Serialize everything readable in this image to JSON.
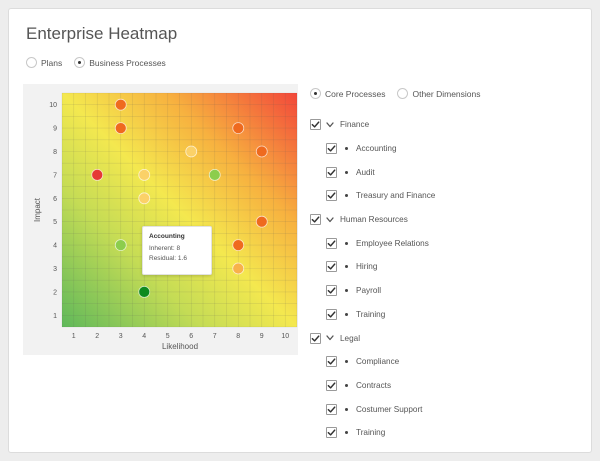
{
  "title": "Enterprise Heatmap",
  "view_mode": {
    "options": [
      {
        "label": "Plans",
        "selected": false
      },
      {
        "label": "Business Processes",
        "selected": true
      }
    ]
  },
  "filter_mode": {
    "options": [
      {
        "label": "Core Processes",
        "selected": true
      },
      {
        "label": "Other Dimensions",
        "selected": false
      }
    ]
  },
  "tooltip": {
    "title": "Accounting",
    "inherent": "Inherent: 8",
    "residual": "Residual: 1.6"
  },
  "colors": {
    "red": "#e53935",
    "dark_orange": "#ef6a1e",
    "orange": "#f5912c",
    "light_orange": "#f8b24a",
    "pale_yellow": "#fbd168",
    "light_green": "#8ccd4d",
    "dark_green": "#0e8a1f",
    "checkbox_border": "#9a9a9a",
    "check_mark": "#333333"
  },
  "chart_data": {
    "type": "scatter",
    "xlabel": "Likelihood",
    "ylabel": "Impact",
    "xlim": [
      0.5,
      10.5
    ],
    "ylim": [
      0.5,
      10.5
    ],
    "x_ticks": [
      "1",
      "2",
      "3",
      "4",
      "5",
      "6",
      "7",
      "8",
      "9",
      "10"
    ],
    "y_ticks": [
      "1",
      "2",
      "3",
      "4",
      "5",
      "6",
      "7",
      "8",
      "9",
      "10"
    ],
    "grid": true,
    "background": "gradient green (bottom-left) to red (top-right)",
    "points": [
      {
        "x": 3,
        "y": 10,
        "color": "dark_orange"
      },
      {
        "x": 3,
        "y": 9,
        "color": "dark_orange"
      },
      {
        "x": 8,
        "y": 9,
        "color": "dark_orange"
      },
      {
        "x": 6,
        "y": 8,
        "color": "pale_yellow"
      },
      {
        "x": 9,
        "y": 8,
        "color": "dark_orange"
      },
      {
        "x": 2,
        "y": 7,
        "color": "red"
      },
      {
        "x": 4,
        "y": 7,
        "color": "pale_yellow"
      },
      {
        "x": 7,
        "y": 7,
        "color": "light_green"
      },
      {
        "x": 4,
        "y": 6,
        "color": "pale_yellow"
      },
      {
        "x": 9,
        "y": 5,
        "color": "dark_orange"
      },
      {
        "x": 3,
        "y": 4,
        "color": "light_green"
      },
      {
        "x": 8,
        "y": 4,
        "color": "dark_orange"
      },
      {
        "x": 8,
        "y": 3,
        "color": "light_orange"
      },
      {
        "x": 4,
        "y": 2,
        "color": "dark_green",
        "label": "Accounting"
      }
    ]
  },
  "tree": [
    {
      "label": "Finance",
      "level": 0,
      "checked": true,
      "expanded": true
    },
    {
      "label": "Accounting",
      "level": 1,
      "checked": true
    },
    {
      "label": "Audit",
      "level": 1,
      "checked": true
    },
    {
      "label": "Treasury and Finance",
      "level": 1,
      "checked": true
    },
    {
      "label": "Human Resources",
      "level": 0,
      "checked": true,
      "expanded": true
    },
    {
      "label": "Employee Relations",
      "level": 1,
      "checked": true
    },
    {
      "label": "Hiring",
      "level": 1,
      "checked": true
    },
    {
      "label": "Payroll",
      "level": 1,
      "checked": true
    },
    {
      "label": "Training",
      "level": 1,
      "checked": true
    },
    {
      "label": "Legal",
      "level": 0,
      "checked": true,
      "expanded": true
    },
    {
      "label": "Compliance",
      "level": 1,
      "checked": true
    },
    {
      "label": "Contracts",
      "level": 1,
      "checked": true
    },
    {
      "label": "Costumer Support",
      "level": 1,
      "checked": true
    },
    {
      "label": "Training",
      "level": 1,
      "checked": true
    }
  ]
}
